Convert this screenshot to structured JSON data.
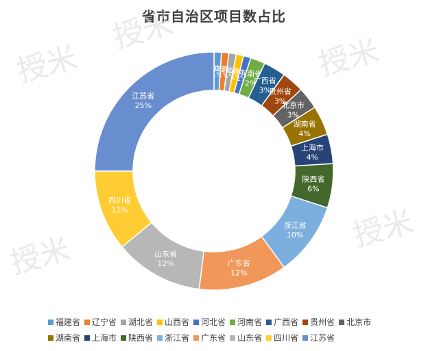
{
  "chart_data": {
    "type": "pie",
    "title": "省市自治区项目数占比",
    "categories": [
      "福建省",
      "辽宁省",
      "湖北省",
      "山西省",
      "河北省",
      "河南省",
      "广西省",
      "贵州省",
      "北京市",
      "湖南省",
      "上海市",
      "陕西省",
      "浙江省",
      "广东省",
      "山东省",
      "四川省",
      "江苏省"
    ],
    "values": [
      1,
      1,
      1,
      1,
      1,
      2,
      3,
      3,
      3,
      4,
      4,
      6,
      10,
      12,
      12,
      11,
      25
    ],
    "value_labels": [
      "1%",
      "1%",
      "1%",
      "1%",
      "1%",
      "2%",
      "3%",
      "3%",
      "3%",
      "4%",
      "4%",
      "6%",
      "10%",
      "12%",
      "12%",
      "11%",
      "25%"
    ],
    "colors": [
      "#5b9bd5",
      "#ed7d31",
      "#a5a5a5",
      "#ffc000",
      "#4472c4",
      "#70ad47",
      "#255e91",
      "#9e480e",
      "#636363",
      "#997300",
      "#264478",
      "#43682b",
      "#7cafdd",
      "#f1975a",
      "#b7b7b7",
      "#ffcd33",
      "#698ed0"
    ],
    "legend_position": "bottom",
    "watermark": "授米"
  }
}
